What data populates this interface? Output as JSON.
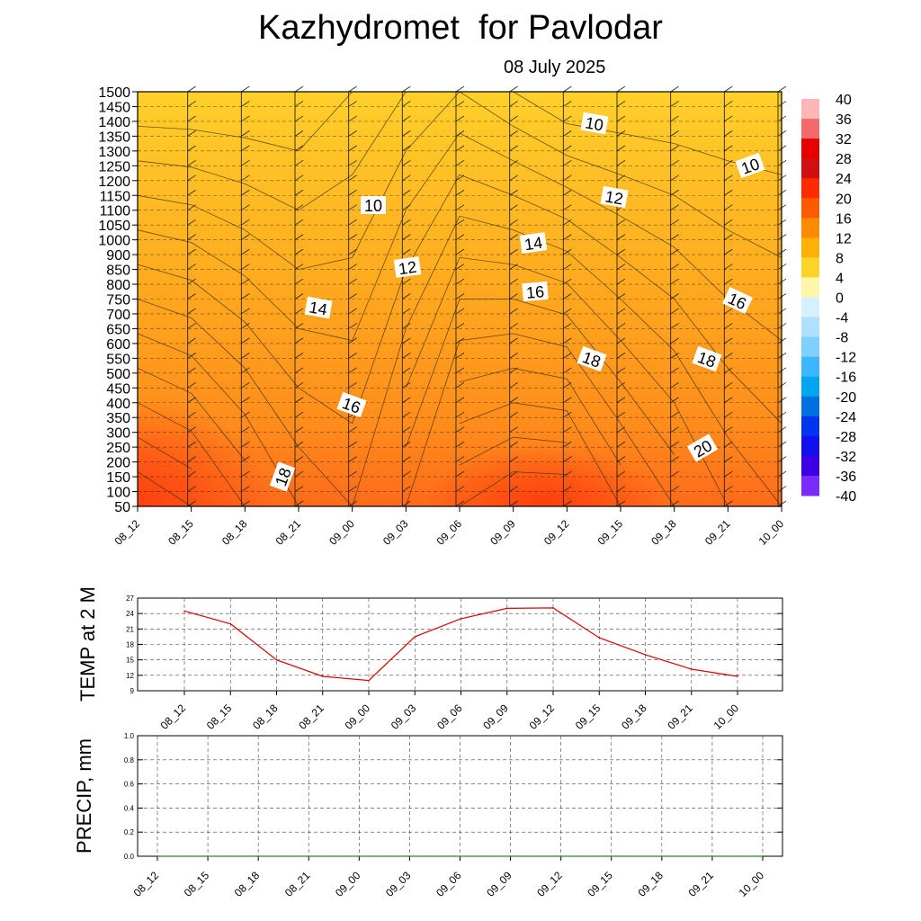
{
  "header": {
    "title": "Kazhydromet  for Pavlodar",
    "date": "08 July 2025"
  },
  "colors": {
    "temp_line": "#e00000",
    "precip_line": "#2a8a2a"
  },
  "times": [
    "08_12",
    "08_15",
    "08_18",
    "08_21",
    "09_00",
    "09_03",
    "09_06",
    "09_09",
    "09_12",
    "09_15",
    "09_18",
    "09_21",
    "10_00"
  ],
  "chart_data": [
    {
      "type": "heatmap",
      "subtype": "time-height cross-section with temperature contours and wind barbs",
      "x": [
        "08_12",
        "08_15",
        "08_18",
        "08_21",
        "09_00",
        "09_03",
        "09_06",
        "09_09",
        "09_12",
        "09_15",
        "09_18",
        "09_21",
        "10_00"
      ],
      "y_tick_labels": [
        "50",
        "100",
        "150",
        "200",
        "250",
        "300",
        "350",
        "400",
        "450",
        "500",
        "550",
        "600",
        "650",
        "700",
        "750",
        "800",
        "850",
        "900",
        "1000",
        "1050",
        "1100",
        "1150",
        "1200",
        "1250",
        "1300",
        "1350",
        "1400",
        "1450",
        "1500"
      ],
      "colorbar": {
        "labels": [
          "40",
          "36",
          "32",
          "28",
          "24",
          "20",
          "16",
          "12",
          "8",
          "4",
          "0",
          "-4",
          "-8",
          "-12",
          "-16",
          "-20",
          "-24",
          "-28",
          "-32",
          "-36",
          "-40"
        ],
        "range": [
          -40,
          40
        ]
      },
      "contour_labels": [
        "10",
        "10",
        "10",
        "12",
        "12",
        "14",
        "14",
        "16",
        "16",
        "16",
        "18",
        "18",
        "18",
        "20"
      ],
      "surface_temperature_estimate": [
        20,
        19,
        17,
        15,
        14,
        17,
        21,
        22,
        22,
        19,
        17,
        15,
        14
      ],
      "top_temperature_estimate": [
        8,
        8,
        8,
        8,
        9,
        10,
        11,
        10,
        9,
        9,
        9,
        9,
        9
      ],
      "grid": true
    },
    {
      "type": "line",
      "ylabel": "TEMP at 2 M",
      "x": [
        "08_12",
        "08_15",
        "08_18",
        "08_21",
        "09_00",
        "09_03",
        "09_06",
        "09_09",
        "09_12",
        "09_15",
        "09_18",
        "09_21",
        "10_00"
      ],
      "series": [
        {
          "values": [
            24.5,
            22.0,
            15.0,
            11.8,
            11.0,
            19.5,
            23.0,
            25.0,
            25.1,
            19.3,
            16.0,
            13.2,
            11.8
          ]
        }
      ],
      "ylim": [
        9,
        27
      ],
      "y_tick_labels": [
        "9",
        "12",
        "15",
        "18",
        "21",
        "24",
        "27"
      ],
      "grid": true
    },
    {
      "type": "line",
      "ylabel": "PRECIP, mm",
      "x": [
        "08_12",
        "08_15",
        "08_18",
        "08_21",
        "09_00",
        "09_03",
        "09_06",
        "09_09",
        "09_12",
        "09_15",
        "09_18",
        "09_21",
        "10_00"
      ],
      "series": [
        {
          "values": [
            0,
            0,
            0,
            0,
            0,
            0,
            0,
            0,
            0,
            0,
            0,
            0,
            0
          ]
        }
      ],
      "ylim": [
        0,
        1.0
      ],
      "y_tick_labels": [
        "0.0",
        "0.2",
        "0.4",
        "0.6",
        "0.8",
        "1.0"
      ],
      "grid": true
    }
  ]
}
